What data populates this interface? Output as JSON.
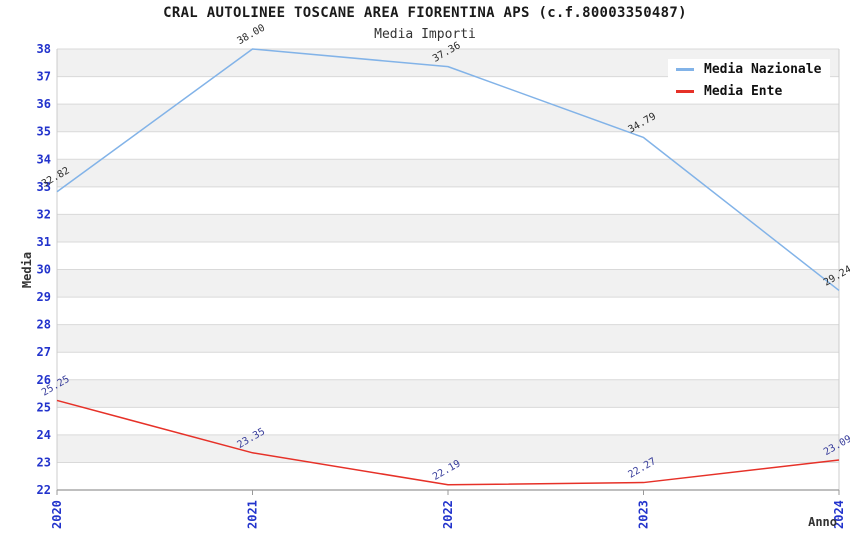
{
  "header": {
    "title": "CRAL AUTOLINEE TOSCANE AREA FIORENTINA APS (c.f.80003350487)",
    "subtitle": "Media Importi"
  },
  "chart_data": {
    "type": "line",
    "title": "CRAL AUTOLINEE TOSCANE AREA FIORENTINA APS (c.f.80003350487)",
    "subtitle": "Media Importi",
    "xlabel": "Anno",
    "ylabel": "Media",
    "x": [
      "2020",
      "2021",
      "2022",
      "2023",
      "2024"
    ],
    "ylim": [
      22,
      38
    ],
    "y_ticks": [
      22,
      23,
      24,
      25,
      26,
      27,
      28,
      29,
      30,
      31,
      32,
      33,
      34,
      35,
      36,
      37,
      38
    ],
    "grid": true,
    "legend_position": "top-right",
    "series": [
      {
        "name": "Media Nazionale",
        "color": "#82b3e8",
        "label_color": "#2b2b2b",
        "values": [
          32.82,
          38.0,
          37.36,
          34.79,
          29.24
        ],
        "labels": [
          "32.82",
          "38.00",
          "37.36",
          "34.79",
          "29.24"
        ]
      },
      {
        "name": "Media Ente",
        "color": "#e63128",
        "label_color": "#383d9b",
        "values": [
          25.25,
          23.35,
          22.19,
          22.27,
          23.09
        ],
        "labels": [
          "25.25",
          "23.35",
          "22.19",
          "22.27",
          "23.09"
        ]
      }
    ],
    "colors": {
      "tick_label": "#2233cc",
      "band": "#f1f1f1",
      "band_alt": "#ffffff",
      "grid": "#d9d9d9",
      "border": "#cccccc",
      "axis": "#999999"
    }
  }
}
